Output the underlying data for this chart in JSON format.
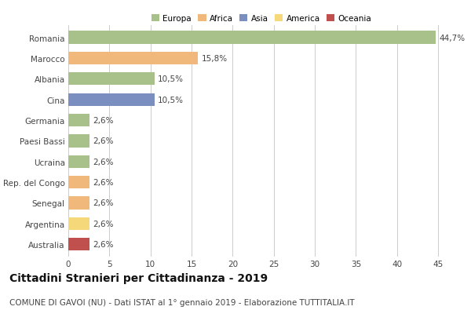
{
  "categories": [
    "Romania",
    "Marocco",
    "Albania",
    "Cina",
    "Germania",
    "Paesi Bassi",
    "Ucraina",
    "Rep. del Congo",
    "Senegal",
    "Argentina",
    "Australia"
  ],
  "values": [
    44.7,
    15.8,
    10.5,
    10.5,
    2.6,
    2.6,
    2.6,
    2.6,
    2.6,
    2.6,
    2.6
  ],
  "labels": [
    "44,7%",
    "15,8%",
    "10,5%",
    "10,5%",
    "2,6%",
    "2,6%",
    "2,6%",
    "2,6%",
    "2,6%",
    "2,6%",
    "2,6%"
  ],
  "bar_colors": [
    "#a8c08a",
    "#f0b87a",
    "#a8c08a",
    "#7a8fc0",
    "#a8c08a",
    "#a8c08a",
    "#a8c08a",
    "#f0b87a",
    "#f0b87a",
    "#f5d87a",
    "#c0504d"
  ],
  "legend_labels": [
    "Europa",
    "Africa",
    "Asia",
    "America",
    "Oceania"
  ],
  "legend_colors": [
    "#a8c08a",
    "#f0b87a",
    "#7a8fc0",
    "#f5d87a",
    "#c0504d"
  ],
  "title": "Cittadini Stranieri per Cittadinanza - 2019",
  "subtitle": "COMUNE DI GAVOI (NU) - Dati ISTAT al 1° gennaio 2019 - Elaborazione TUTTITALIA.IT",
  "xlim": [
    0,
    47
  ],
  "xticks": [
    0,
    5,
    10,
    15,
    20,
    25,
    30,
    35,
    40,
    45
  ],
  "background_color": "#ffffff",
  "grid_color": "#cccccc",
  "title_fontsize": 10,
  "subtitle_fontsize": 7.5,
  "label_fontsize": 7.5,
  "tick_fontsize": 7.5
}
